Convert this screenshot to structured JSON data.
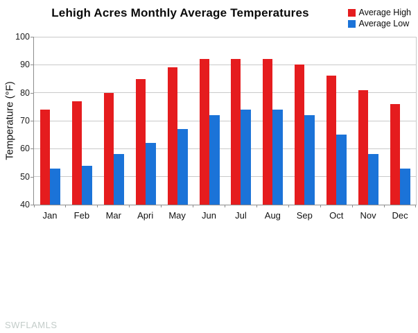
{
  "watermark": "SWFLAMLS",
  "chart_data": {
    "type": "bar",
    "title": "Lehigh Acres Monthly Average Temperatures",
    "categories": [
      "Jan",
      "Feb",
      "Mar",
      "Apri",
      "May",
      "Jun",
      "Jul",
      "Aug",
      "Sep",
      "Oct",
      "Nov",
      "Dec"
    ],
    "series": [
      {
        "name": "Average High",
        "color": "#e51c1e",
        "values": [
          74,
          77,
          80,
          85,
          89,
          92,
          92,
          92,
          90,
          86,
          81,
          76
        ]
      },
      {
        "name": "Average Low",
        "color": "#1b73d8",
        "values": [
          53,
          54,
          58,
          62,
          67,
          72,
          74,
          74,
          72,
          65,
          58,
          53
        ]
      }
    ],
    "xlabel": "",
    "ylabel": "Temperature (°F)",
    "ylim": [
      40,
      100
    ],
    "ytick_step": 10,
    "grid": true,
    "legend_position": "top-right",
    "grid_color": "#c9c9c9",
    "axis_color": "#8c8c8c"
  }
}
